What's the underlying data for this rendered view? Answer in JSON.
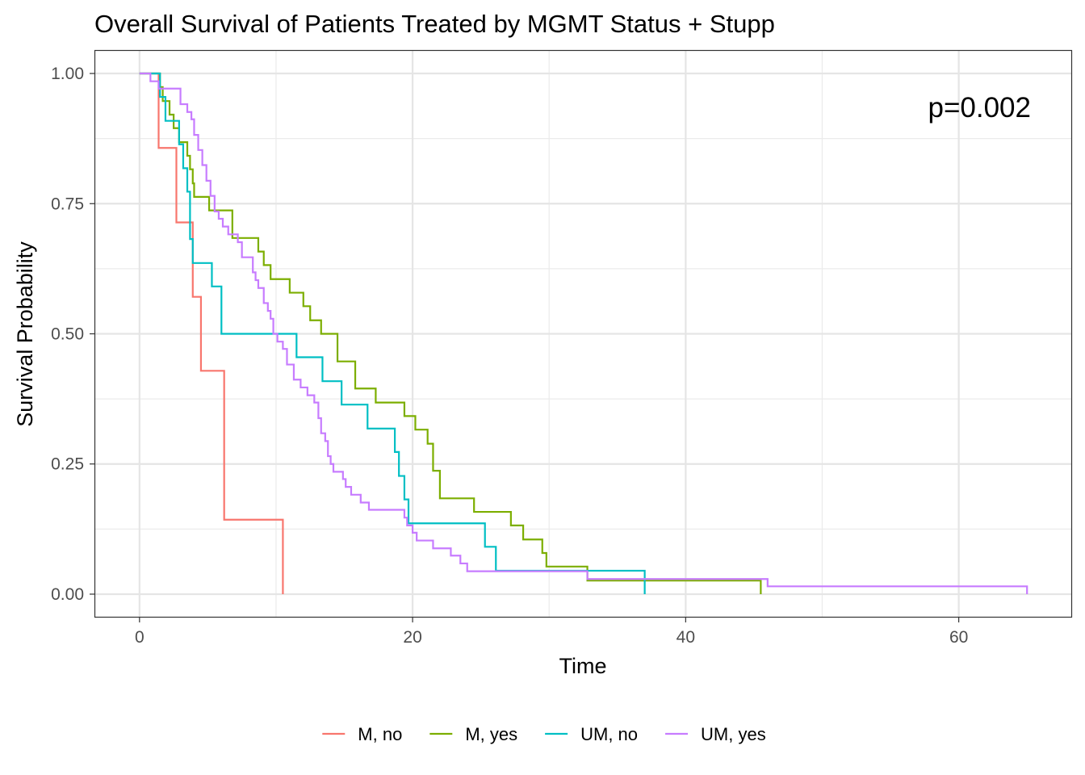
{
  "chart_data": {
    "type": "line",
    "subtype": "step",
    "title": "Overall Survival of Patients Treated by MGMT Status + Stupp",
    "xlabel": "Time",
    "ylabel": "Survival Probability",
    "xlim": [
      -3.3,
      68.3
    ],
    "ylim": [
      -0.045,
      1.045
    ],
    "x_ticks": [
      0,
      20,
      40,
      60
    ],
    "x_tick_labels": [
      "0",
      "20",
      "40",
      "60"
    ],
    "y_ticks": [
      0,
      0.25,
      0.5,
      0.75,
      1.0
    ],
    "y_tick_labels": [
      "0.00",
      "0.25",
      "0.50",
      "0.75",
      "1.00"
    ],
    "grid": true,
    "legend_position": "bottom",
    "annotation": "p=0.002",
    "series": [
      {
        "name": "M, no",
        "color": "#F8766D",
        "points": [
          [
            0,
            1.0
          ],
          [
            1.4,
            1.0
          ],
          [
            1.4,
            0.857
          ],
          [
            2.7,
            0.857
          ],
          [
            2.7,
            0.714
          ],
          [
            3.9,
            0.714
          ],
          [
            3.9,
            0.571
          ],
          [
            4.5,
            0.571
          ],
          [
            4.5,
            0.429
          ],
          [
            6.2,
            0.429
          ],
          [
            6.2,
            0.143
          ],
          [
            10.5,
            0.143
          ],
          [
            10.5,
            0.0
          ]
        ]
      },
      {
        "name": "M, yes",
        "color": "#7CAE00",
        "points": [
          [
            0,
            1.0
          ],
          [
            1.5,
            1.0
          ],
          [
            1.5,
            0.974
          ],
          [
            1.7,
            0.974
          ],
          [
            1.7,
            0.947
          ],
          [
            2.2,
            0.947
          ],
          [
            2.2,
            0.921
          ],
          [
            2.5,
            0.921
          ],
          [
            2.5,
            0.895
          ],
          [
            2.9,
            0.895
          ],
          [
            2.9,
            0.868
          ],
          [
            3.5,
            0.868
          ],
          [
            3.5,
            0.842
          ],
          [
            3.7,
            0.842
          ],
          [
            3.7,
            0.816
          ],
          [
            3.9,
            0.816
          ],
          [
            3.9,
            0.789
          ],
          [
            4.0,
            0.789
          ],
          [
            4.0,
            0.763
          ],
          [
            5.1,
            0.763
          ],
          [
            5.1,
            0.737
          ],
          [
            6.8,
            0.737
          ],
          [
            6.8,
            0.684
          ],
          [
            8.7,
            0.684
          ],
          [
            8.7,
            0.658
          ],
          [
            9.1,
            0.658
          ],
          [
            9.1,
            0.632
          ],
          [
            9.6,
            0.632
          ],
          [
            9.6,
            0.605
          ],
          [
            11.0,
            0.605
          ],
          [
            11.0,
            0.579
          ],
          [
            12.0,
            0.579
          ],
          [
            12.0,
            0.553
          ],
          [
            12.5,
            0.553
          ],
          [
            12.5,
            0.526
          ],
          [
            13.3,
            0.526
          ],
          [
            13.3,
            0.5
          ],
          [
            14.5,
            0.5
          ],
          [
            14.5,
            0.447
          ],
          [
            15.8,
            0.447
          ],
          [
            15.8,
            0.395
          ],
          [
            17.3,
            0.395
          ],
          [
            17.3,
            0.368
          ],
          [
            19.4,
            0.368
          ],
          [
            19.4,
            0.342
          ],
          [
            20.2,
            0.342
          ],
          [
            20.2,
            0.316
          ],
          [
            21.1,
            0.316
          ],
          [
            21.1,
            0.289
          ],
          [
            21.5,
            0.289
          ],
          [
            21.5,
            0.237
          ],
          [
            22.0,
            0.237
          ],
          [
            22.0,
            0.184
          ],
          [
            24.5,
            0.184
          ],
          [
            24.5,
            0.158
          ],
          [
            27.2,
            0.158
          ],
          [
            27.2,
            0.132
          ],
          [
            28.1,
            0.132
          ],
          [
            28.1,
            0.105
          ],
          [
            29.5,
            0.105
          ],
          [
            29.5,
            0.079
          ],
          [
            29.8,
            0.079
          ],
          [
            29.8,
            0.053
          ],
          [
            32.8,
            0.053
          ],
          [
            32.8,
            0.026
          ],
          [
            45.5,
            0.026
          ],
          [
            45.5,
            0.0
          ]
        ]
      },
      {
        "name": "UM, no",
        "color": "#00BFC4",
        "points": [
          [
            0,
            1.0
          ],
          [
            1.5,
            1.0
          ],
          [
            1.5,
            0.955
          ],
          [
            1.9,
            0.955
          ],
          [
            1.9,
            0.909
          ],
          [
            2.9,
            0.909
          ],
          [
            2.9,
            0.864
          ],
          [
            3.2,
            0.864
          ],
          [
            3.2,
            0.818
          ],
          [
            3.5,
            0.818
          ],
          [
            3.5,
            0.773
          ],
          [
            3.7,
            0.773
          ],
          [
            3.7,
            0.682
          ],
          [
            3.9,
            0.682
          ],
          [
            3.9,
            0.636
          ],
          [
            5.3,
            0.636
          ],
          [
            5.3,
            0.591
          ],
          [
            6.0,
            0.591
          ],
          [
            6.0,
            0.5
          ],
          [
            11.5,
            0.5
          ],
          [
            11.5,
            0.455
          ],
          [
            13.4,
            0.455
          ],
          [
            13.4,
            0.409
          ],
          [
            14.8,
            0.409
          ],
          [
            14.8,
            0.364
          ],
          [
            16.7,
            0.364
          ],
          [
            16.7,
            0.318
          ],
          [
            18.7,
            0.318
          ],
          [
            18.7,
            0.273
          ],
          [
            19.0,
            0.273
          ],
          [
            19.0,
            0.227
          ],
          [
            19.4,
            0.227
          ],
          [
            19.4,
            0.182
          ],
          [
            19.7,
            0.182
          ],
          [
            19.7,
            0.136
          ],
          [
            25.3,
            0.136
          ],
          [
            25.3,
            0.091
          ],
          [
            26.1,
            0.091
          ],
          [
            26.1,
            0.045
          ],
          [
            37.0,
            0.045
          ],
          [
            37.0,
            0.0
          ]
        ]
      },
      {
        "name": "UM, yes",
        "color": "#C77CFF",
        "points": [
          [
            0,
            1.0
          ],
          [
            0.8,
            1.0
          ],
          [
            0.8,
            0.985
          ],
          [
            1.4,
            0.985
          ],
          [
            1.4,
            0.971
          ],
          [
            3.0,
            0.971
          ],
          [
            3.0,
            0.941
          ],
          [
            3.5,
            0.941
          ],
          [
            3.5,
            0.926
          ],
          [
            3.8,
            0.926
          ],
          [
            3.8,
            0.912
          ],
          [
            4.0,
            0.912
          ],
          [
            4.0,
            0.882
          ],
          [
            4.3,
            0.882
          ],
          [
            4.3,
            0.853
          ],
          [
            4.6,
            0.853
          ],
          [
            4.6,
            0.824
          ],
          [
            4.9,
            0.824
          ],
          [
            4.9,
            0.794
          ],
          [
            5.2,
            0.794
          ],
          [
            5.2,
            0.765
          ],
          [
            5.5,
            0.765
          ],
          [
            5.5,
            0.735
          ],
          [
            5.8,
            0.735
          ],
          [
            5.8,
            0.721
          ],
          [
            6.1,
            0.721
          ],
          [
            6.1,
            0.706
          ],
          [
            6.5,
            0.706
          ],
          [
            6.5,
            0.691
          ],
          [
            7.2,
            0.691
          ],
          [
            7.2,
            0.676
          ],
          [
            7.5,
            0.676
          ],
          [
            7.5,
            0.647
          ],
          [
            8.3,
            0.647
          ],
          [
            8.3,
            0.618
          ],
          [
            8.5,
            0.618
          ],
          [
            8.5,
            0.603
          ],
          [
            8.7,
            0.603
          ],
          [
            8.7,
            0.588
          ],
          [
            9.1,
            0.588
          ],
          [
            9.1,
            0.559
          ],
          [
            9.4,
            0.559
          ],
          [
            9.4,
            0.544
          ],
          [
            9.6,
            0.544
          ],
          [
            9.6,
            0.529
          ],
          [
            9.8,
            0.529
          ],
          [
            9.8,
            0.5
          ],
          [
            10.1,
            0.5
          ],
          [
            10.1,
            0.485
          ],
          [
            10.5,
            0.485
          ],
          [
            10.5,
            0.471
          ],
          [
            10.8,
            0.471
          ],
          [
            10.8,
            0.441
          ],
          [
            11.3,
            0.441
          ],
          [
            11.3,
            0.412
          ],
          [
            11.8,
            0.412
          ],
          [
            11.8,
            0.397
          ],
          [
            12.3,
            0.397
          ],
          [
            12.3,
            0.382
          ],
          [
            12.8,
            0.382
          ],
          [
            12.8,
            0.368
          ],
          [
            13.1,
            0.368
          ],
          [
            13.1,
            0.338
          ],
          [
            13.3,
            0.338
          ],
          [
            13.3,
            0.309
          ],
          [
            13.6,
            0.309
          ],
          [
            13.6,
            0.294
          ],
          [
            13.8,
            0.294
          ],
          [
            13.8,
            0.265
          ],
          [
            14.0,
            0.265
          ],
          [
            14.0,
            0.25
          ],
          [
            14.2,
            0.25
          ],
          [
            14.2,
            0.235
          ],
          [
            14.9,
            0.235
          ],
          [
            14.9,
            0.221
          ],
          [
            15.1,
            0.221
          ],
          [
            15.1,
            0.206
          ],
          [
            15.5,
            0.206
          ],
          [
            15.5,
            0.191
          ],
          [
            16.2,
            0.191
          ],
          [
            16.2,
            0.176
          ],
          [
            16.8,
            0.176
          ],
          [
            16.8,
            0.162
          ],
          [
            19.4,
            0.162
          ],
          [
            19.4,
            0.147
          ],
          [
            19.6,
            0.147
          ],
          [
            19.6,
            0.132
          ],
          [
            20.0,
            0.132
          ],
          [
            20.0,
            0.118
          ],
          [
            20.3,
            0.118
          ],
          [
            20.3,
            0.103
          ],
          [
            21.5,
            0.103
          ],
          [
            21.5,
            0.088
          ],
          [
            22.8,
            0.088
          ],
          [
            22.8,
            0.074
          ],
          [
            23.5,
            0.074
          ],
          [
            23.5,
            0.059
          ],
          [
            24.0,
            0.059
          ],
          [
            24.0,
            0.044
          ],
          [
            32.8,
            0.044
          ],
          [
            32.8,
            0.029
          ],
          [
            46.0,
            0.029
          ],
          [
            46.0,
            0.015
          ],
          [
            65.0,
            0.015
          ],
          [
            65.0,
            0.0
          ]
        ]
      }
    ]
  }
}
